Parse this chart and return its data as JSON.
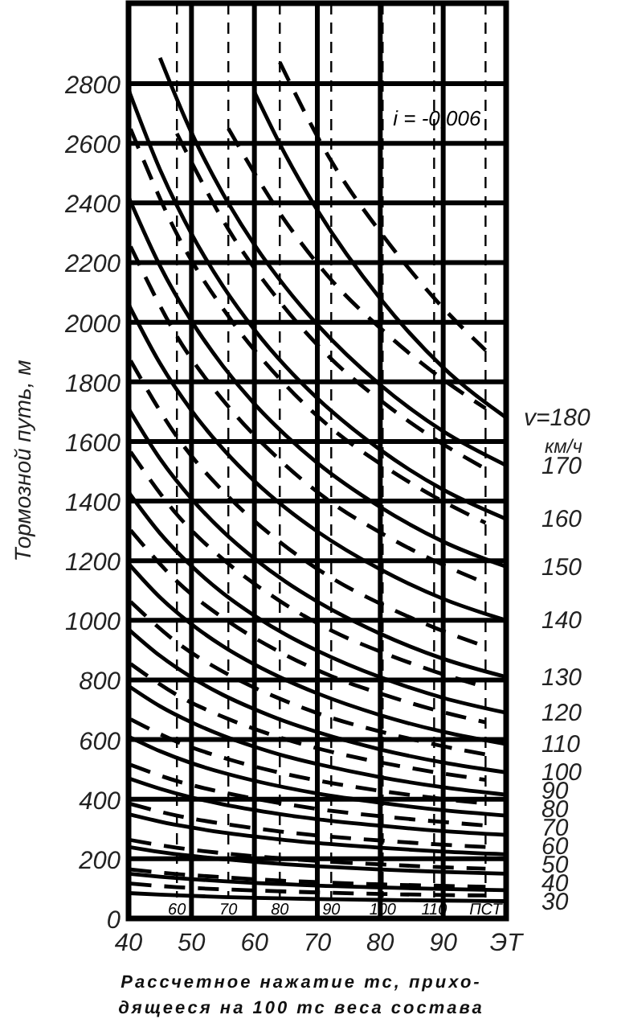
{
  "chart_data": {
    "type": "line",
    "xlabel": "Рассчетное нажатие тс, прихо-\nдящееся на 100 тс веса состава",
    "ylabel": "Тормозной путь, м",
    "annotations": [
      "i = -0,006",
      "км/ч"
    ],
    "x": [
      40,
      45,
      50,
      55,
      60,
      65,
      70,
      80,
      90,
      100
    ],
    "xlim": [
      40,
      100
    ],
    "xticks": [
      40,
      50,
      60,
      70,
      80,
      90,
      {
        "value": 100,
        "label": "ЭТ"
      }
    ],
    "x2lim": [
      50.6,
      124
    ],
    "x2ticks": [
      60,
      70,
      80,
      90,
      100,
      110,
      {
        "value": 120,
        "label": "ПСТ"
      }
    ],
    "ylim": [
      0,
      3070
    ],
    "yticks": [
      0,
      200,
      400,
      600,
      800,
      1000,
      1200,
      1400,
      1600,
      1800,
      2000,
      2200,
      2400,
      2600,
      2800
    ],
    "grid": true,
    "series": [
      {
        "name": "30",
        "color": "#000000",
        "line_style": "solid",
        "values": [
          85,
          80,
          76,
          72,
          69,
          67,
          65,
          62,
          60,
          58
        ]
      },
      {
        "name": "40",
        "color": "#000000",
        "line_style": "solid",
        "values": [
          150,
          140,
          132,
          125,
          119,
          115,
          110,
          104,
          99,
          95
        ]
      },
      {
        "name": "50",
        "color": "#000000",
        "line_style": "solid",
        "values": [
          240,
          223,
          210,
          199,
          190,
          182,
          175,
          164,
          156,
          150
        ]
      },
      {
        "name": "60",
        "color": "#000000",
        "line_style": "solid",
        "values": [
          350,
          325,
          305,
          288,
          275,
          263,
          253,
          237,
          224,
          215
        ]
      },
      {
        "name": "70",
        "color": "#000000",
        "line_style": "solid",
        "values": [
          470,
          435,
          406,
          383,
          364,
          347,
          333,
          311,
          293,
          280
        ]
      },
      {
        "name": "80",
        "color": "#000000",
        "line_style": "solid",
        "values": [
          610,
          561,
          521,
          489,
          462,
          439,
          419,
          388,
          363,
          345
        ]
      },
      {
        "name": "90",
        "color": "#000000",
        "line_style": "solid",
        "values": [
          780,
          712,
          658,
          613,
          576,
          544,
          518,
          474,
          440,
          415
        ]
      },
      {
        "name": "100",
        "color": "#000000",
        "line_style": "solid",
        "values": [
          970,
          881,
          809,
          750,
          702,
          660,
          625,
          567,
          523,
          490
        ]
      },
      {
        "name": "110",
        "color": "#000000",
        "line_style": "solid",
        "values": [
          1190,
          1077,
          987,
          913,
          852,
          800,
          755,
          682,
          626,
          585
        ]
      },
      {
        "name": "120",
        "color": "#000000",
        "line_style": "solid",
        "values": [
          1430,
          1292,
          1182,
          1091,
          1016,
          952,
          898,
          809,
          740,
          690
        ]
      },
      {
        "name": "130",
        "color": "#000000",
        "line_style": "solid",
        "values": [
          1710,
          1542,
          1408,
          1298,
          1207,
          1129,
          1063,
          955,
          871,
          810
        ]
      },
      {
        "name": "140",
        "color": "#000000",
        "line_style": "solid",
        "values": [
          2060,
          1862,
          1704,
          1575,
          1467,
          1376,
          1298,
          1171,
          1072,
          1000
        ]
      },
      {
        "name": "150",
        "color": "#000000",
        "line_style": "solid",
        "values": [
          2420,
          2189,
          2004,
          1853,
          1726,
          1620,
          1528,
          1380,
          1264,
          1180
        ]
      },
      {
        "name": "160",
        "color": "#000000",
        "line_style": "solid",
        "values": [
          2780,
          2512,
          2297,
          2121,
          1975,
          1851,
          1745,
          1572,
          1438,
          1340
        ]
      },
      {
        "name": "170",
        "color": "#000000",
        "line_style": "solid",
        "values": [
          null,
          2887,
          2636,
          2431,
          2260,
          2116,
          1992,
          1790,
          1634,
          1520
        ]
      },
      {
        "name": "v=180",
        "color": "#000000",
        "line_style": "solid",
        "values": [
          null,
          null,
          null,
          null,
          2772,
          2559,
          2376,
          2079,
          1848,
          1680
        ]
      },
      {
        "color": "#000000",
        "line_style": "dashed",
        "axis": "x2",
        "x": [
          51,
          60,
          70,
          80,
          90,
          100,
          110,
          120
        ],
        "values": [
          117,
          105,
          97,
          91,
          86,
          82,
          79,
          77
        ]
      },
      {
        "color": "#000000",
        "line_style": "dashed",
        "axis": "x2",
        "x": [
          51,
          60,
          70,
          80,
          90,
          100,
          110,
          120
        ],
        "values": [
          164,
          149,
          137,
          127,
          120,
          114,
          110,
          106
        ]
      },
      {
        "color": "#000000",
        "line_style": "dashed",
        "axis": "x2",
        "x": [
          51,
          60,
          70,
          80,
          90,
          100,
          110,
          120
        ],
        "values": [
          263,
          237,
          217,
          202,
          190,
          181,
          173,
          167
        ]
      },
      {
        "color": "#000000",
        "line_style": "dashed",
        "axis": "x2",
        "x": [
          51,
          60,
          70,
          80,
          90,
          100,
          110,
          120
        ],
        "values": [
          384,
          345,
          315,
          292,
          274,
          261,
          249,
          240
        ]
      },
      {
        "color": "#000000",
        "line_style": "dashed",
        "axis": "x2",
        "x": [
          51,
          60,
          70,
          80,
          90,
          100,
          110,
          120
        ],
        "values": [
          515,
          461,
          419,
          387,
          361,
          342,
          326,
          312
        ]
      },
      {
        "color": "#000000",
        "line_style": "dashed",
        "axis": "x2",
        "x": [
          51,
          60,
          70,
          80,
          90,
          100,
          110,
          120
        ],
        "values": [
          668,
          593,
          534,
          489,
          454,
          427,
          404,
          386
        ]
      },
      {
        "color": "#000000",
        "line_style": "dashed",
        "axis": "x2",
        "x": [
          51,
          60,
          70,
          80,
          90,
          100,
          110,
          120
        ],
        "values": [
          854,
          750,
          669,
          607,
          559,
          522,
          491,
          465
        ]
      },
      {
        "color": "#000000",
        "line_style": "dashed",
        "axis": "x2",
        "x": [
          51,
          60,
          70,
          80,
          90,
          100,
          110,
          120
        ],
        "values": [
          1062,
          926,
          818,
          737,
          673,
          625,
          584,
          550
        ]
      },
      {
        "color": "#000000",
        "line_style": "dashed",
        "axis": "x2",
        "x": [
          51,
          60,
          70,
          80,
          90,
          100,
          110,
          120
        ],
        "values": [
          1302,
          1131,
          996,
          894,
          813,
          752,
          700,
          658
        ]
      },
      {
        "color": "#000000",
        "line_style": "dashed",
        "axis": "x2",
        "x": [
          51,
          60,
          70,
          80,
          90,
          100,
          110,
          120
        ],
        "values": [
          1565,
          1355,
          1190,
          1065,
          966,
          892,
          829,
          776
        ]
      },
      {
        "color": "#000000",
        "line_style": "dashed",
        "axis": "x2",
        "x": [
          51,
          60,
          70,
          80,
          90,
          100,
          110,
          120
        ],
        "values": [
          1871,
          1616,
          1415,
          1263,
          1143,
          1052,
          976,
          912
        ]
      },
      {
        "color": "#000000",
        "line_style": "dashed",
        "axis": "x2",
        "x": [
          51,
          60,
          70,
          80,
          90,
          100,
          110,
          120
        ],
        "values": [
          2254,
          1953,
          1717,
          1538,
          1396,
          1290,
          1200,
          1125
        ]
      },
      {
        "color": "#000000",
        "line_style": "dashed",
        "axis": "x2",
        "x": [
          51,
          60,
          70,
          80,
          90,
          100,
          110,
          120
        ],
        "values": [
          2648,
          2296,
          2020,
          1810,
          1645,
          1520,
          1415,
          1327
        ]
      },
      {
        "color": "#000000",
        "line_style": "dashed",
        "axis": "x2",
        "x": [
          60,
          70,
          80,
          90,
          100,
          110,
          120
        ],
        "values": [
          2633,
          2312,
          2069,
          1877,
          1732,
          1610,
          1508
        ]
      },
      {
        "color": "#000000",
        "line_style": "dashed",
        "axis": "x2",
        "x": [
          70,
          80,
          90,
          100,
          110,
          120
        ],
        "values": [
          2650,
          2366,
          2142,
          1973,
          1830,
          1711
        ]
      },
      {
        "color": "#000000",
        "line_style": "dashed",
        "axis": "x2",
        "x": [
          80,
          90,
          100,
          110,
          120
        ],
        "values": [
          2872,
          2541,
          2292,
          2081,
          1906
        ]
      }
    ]
  }
}
